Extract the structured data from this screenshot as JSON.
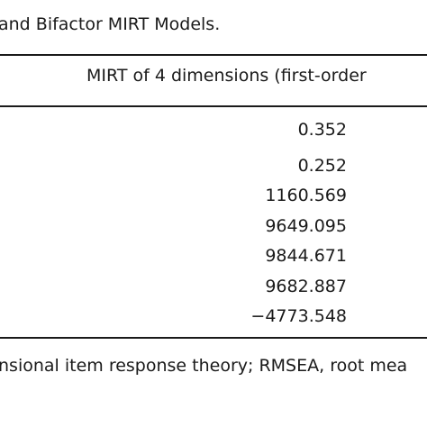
{
  "caption": "and Bifactor MIRT Models.",
  "column_header": "MIRT of 4 dimensions (first-order",
  "values": [
    "0.352",
    "0.252",
    "1160.569",
    "9649.095",
    "9844.671",
    "9682.887",
    "−4773.548"
  ],
  "footnote": "nsional item response theory; RMSEA, root mea"
}
